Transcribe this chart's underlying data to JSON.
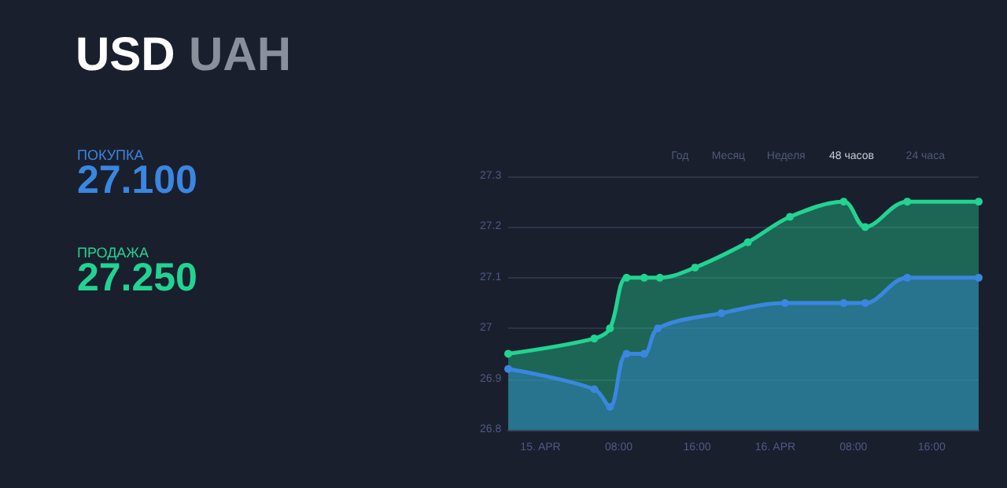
{
  "chart_data": {
    "type": "area",
    "title": "USD UAH",
    "annotations": [
      "Год",
      "Месяц",
      "Неделя",
      "48 часов",
      "24 часа",
      "27.100",
      "27.250"
    ],
    "legend": "left",
    "grid": "y",
    "marker": "circle",
    "line_style": "solid",
    "xlim": [
      "--04-14T20:42",
      "--04-16T20:48"
    ],
    "xticks": [
      {
        "value": "--04-15",
        "label": "15. APR"
      },
      {
        "value": "--04-15T08:00",
        "label": "08:00"
      },
      {
        "value": "--04-15T16:00",
        "label": "16:00"
      },
      {
        "value": "--04-16",
        "label": "16. APR"
      },
      {
        "value": "--04-16T08:00",
        "label": "08:00"
      },
      {
        "value": "--04-16T16:00",
        "label": "16:00"
      }
    ],
    "ylim": [
      26.8,
      27.3
    ],
    "yticks": [
      26.8,
      26.9,
      27,
      27.1,
      27.2,
      27.3
    ],
    "series": [
      {
        "name": "ПОКУПКА",
        "color": "#3a86e0",
        "x": [
          "--04-14T20:42",
          "--04-15T05:30",
          "--04-15T07:06",
          "--04-15T08:48",
          "--04-15T10:36",
          "--04-15T12:00",
          "--04-15T18:30",
          "--04-16T01:00",
          "--04-16T07:00",
          "--04-16T09:12",
          "--04-16T13:30",
          "--04-16T20:48"
        ],
        "values": [
          26.92,
          26.88,
          26.845,
          26.95,
          26.95,
          27.0,
          27.03,
          27.05,
          27.05,
          27.05,
          27.1,
          27.1
        ]
      },
      {
        "name": "ПРОДАЖА",
        "color": "#22d392",
        "x": [
          "--04-14T20:42",
          "--04-15T05:30",
          "--04-15T07:06",
          "--04-15T08:48",
          "--04-15T10:36",
          "--04-15T12:12",
          "--04-15T15:48",
          "--04-15T21:12",
          "--04-16T01:30",
          "--04-16T07:00",
          "--04-16T09:12",
          "--04-16T13:30",
          "--04-16T20:48"
        ],
        "values": [
          26.95,
          26.98,
          27.0,
          27.1,
          27.1,
          27.1,
          27.12,
          27.17,
          27.22,
          27.25,
          27.2,
          27.25,
          27.25
        ]
      }
    ]
  }
}
